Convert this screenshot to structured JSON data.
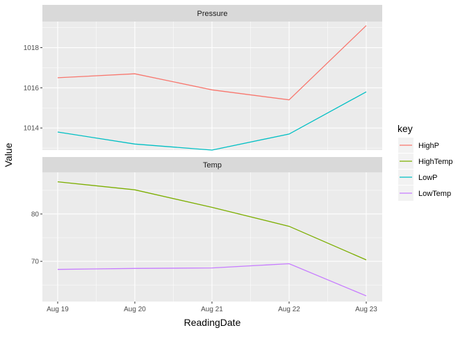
{
  "chart_data": {
    "type": "line",
    "xlabel": "ReadingDate",
    "ylabel": "Value",
    "x": [
      "Aug 19",
      "Aug 20",
      "Aug 21",
      "Aug 22",
      "Aug 23"
    ],
    "legend": {
      "title": "key",
      "placement": "right",
      "entries": [
        {
          "name": "HighP",
          "color": "#F8766D"
        },
        {
          "name": "HighTemp",
          "color": "#7CAE00"
        },
        {
          "name": "LowP",
          "color": "#00BFC4"
        },
        {
          "name": "LowTemp",
          "color": "#C77CFF"
        }
      ]
    },
    "grid": true,
    "facets": [
      {
        "strip": "Pressure",
        "ylim": [
          1012.9,
          1019.3
        ],
        "yticks": [
          1014,
          1016,
          1018
        ],
        "series": [
          {
            "name": "HighP",
            "color": "#F8766D",
            "values": [
              1016.5,
              1016.7,
              1015.9,
              1015.4,
              1019.1
            ]
          },
          {
            "name": "LowP",
            "color": "#00BFC4",
            "values": [
              1013.8,
              1013.2,
              1012.9,
              1013.7,
              1015.8
            ]
          }
        ]
      },
      {
        "strip": "Temp",
        "ylim": [
          61.5,
          88.8
        ],
        "yticks": [
          70,
          80
        ],
        "series": [
          {
            "name": "HighTemp",
            "color": "#7CAE00",
            "values": [
              86.8,
              85.1,
              81.4,
              77.4,
              70.3
            ]
          },
          {
            "name": "LowTemp",
            "color": "#C77CFF",
            "values": [
              68.3,
              68.5,
              68.6,
              69.5,
              62.7
            ]
          }
        ]
      }
    ]
  }
}
